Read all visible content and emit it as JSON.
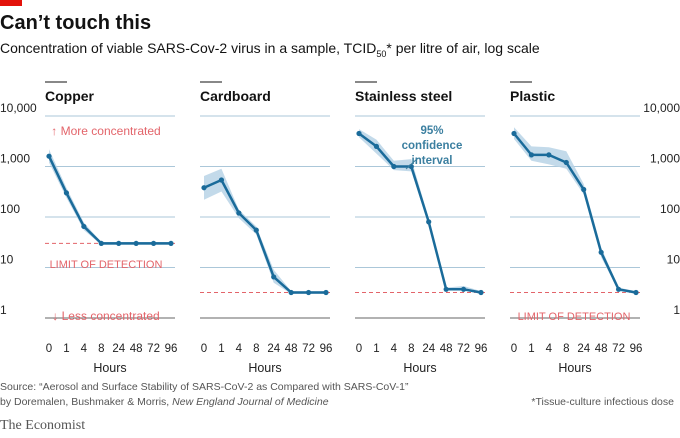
{
  "title": "Can’t touch this",
  "subtitle_main": "Concentration of viable SARS-Cov-2 virus in a sample, TCID",
  "subtitle_sub": "50",
  "subtitle_tail": "* per litre of air, log scale",
  "source_line1": "Source: “Aerosol and Surface Stability of SARS-CoV-2 as Compared with SARS-CoV-1”",
  "source_line2_prefix": "by Doremalen, Bushmaker & Morris, ",
  "source_journal": "New England Journal of Medicine",
  "footnote": "*Tissue-culture infectious dose",
  "brand": "The Economist",
  "colors": {
    "line": "#1a6b9a",
    "band": "#b9d3e6",
    "grid": "#8fb4cc",
    "red_accent": "#e3646a",
    "annotation_blue": "#3b7fa0",
    "detection_line": "#e3646a"
  },
  "chart_data": {
    "type": "line",
    "y_scale": "log",
    "ylim": [
      1,
      10000
    ],
    "y_ticks": [
      "1",
      "10",
      "100",
      "1,000",
      "10,000"
    ],
    "x_categories": [
      "0",
      "1",
      "4",
      "8",
      "24",
      "48",
      "72",
      "96"
    ],
    "xlabel": "Hours",
    "panels": [
      {
        "name": "Copper",
        "values": [
          1600,
          300,
          65,
          30,
          30,
          30,
          30,
          30
        ],
        "ci_low": [
          1200,
          240,
          55,
          28,
          28,
          28,
          28,
          28
        ],
        "ci_high": [
          2200,
          380,
          78,
          32,
          32,
          32,
          32,
          32
        ],
        "detection_limit": 30,
        "annotations": [
          "↑ More concentrated",
          "LIMIT OF DETECTION",
          "↓ Less concentrated"
        ]
      },
      {
        "name": "Cardboard",
        "values": [
          380,
          540,
          120,
          55,
          6.5,
          3.2,
          3.2,
          3.2
        ],
        "ci_low": [
          220,
          320,
          95,
          45,
          5,
          3,
          3,
          3
        ],
        "ci_high": [
          650,
          900,
          140,
          65,
          9,
          3.4,
          3.4,
          3.4
        ],
        "detection_limit": 3.2
      },
      {
        "name": "Stainless steel",
        "values": [
          4500,
          2500,
          1000,
          1000,
          80,
          3.7,
          3.7,
          3.2
        ],
        "ci_low": [
          3800,
          1800,
          850,
          800,
          70,
          3.5,
          3.5,
          3
        ],
        "ci_high": [
          5500,
          3400,
          1300,
          1400,
          95,
          4,
          4.3,
          3.4
        ],
        "detection_limit": 3.2,
        "annotations": [
          "95%",
          "confidence",
          "interval"
        ]
      },
      {
        "name": "Plastic",
        "values": [
          4500,
          1700,
          1700,
          1200,
          350,
          20,
          3.7,
          3.2
        ],
        "ci_low": [
          3500,
          1300,
          1100,
          900,
          280,
          16,
          3.4,
          3
        ],
        "ci_high": [
          6000,
          2500,
          2400,
          2000,
          450,
          25,
          4,
          3.4
        ],
        "detection_limit": 3.2,
        "annotations": [
          "LIMIT OF DETECTION"
        ]
      }
    ]
  }
}
